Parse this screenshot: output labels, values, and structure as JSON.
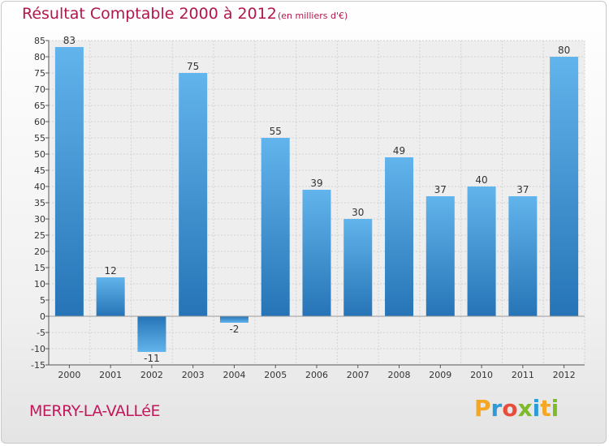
{
  "title": "Résultat Comptable 2000 à 2012",
  "unit": "(en milliers d'€)",
  "commune": "MERRY-LA-VALLéE",
  "brand": {
    "letters": [
      "P",
      "r",
      "o",
      "x",
      "i",
      "t",
      "i"
    ],
    "colors": [
      "#f5a623",
      "#2e9bd6",
      "#e84c3d",
      "#7dbb2a",
      "#2e9bd6",
      "#f5a623",
      "#7dbb2a"
    ]
  },
  "colors": {
    "bar_light": "#62b4ec",
    "bar_dark": "#2674b6",
    "title": "#b0174a"
  },
  "chart_data": {
    "type": "bar",
    "title": "Résultat Comptable 2000 à 2012",
    "ylabel": "en milliers d'€",
    "xlabel": "",
    "categories": [
      "2000",
      "2001",
      "2002",
      "2003",
      "2004",
      "2005",
      "2006",
      "2007",
      "2008",
      "2009",
      "2010",
      "2011",
      "2012"
    ],
    "values": [
      83,
      12,
      -11,
      75,
      -2,
      55,
      39,
      30,
      49,
      37,
      40,
      37,
      80
    ],
    "value_labels": [
      "83",
      "12",
      "-11",
      "75",
      "-2",
      "55",
      "39",
      "30",
      "49",
      "37",
      "40",
      "37",
      "80"
    ],
    "ylim": [
      -15,
      85
    ],
    "yticks": [
      -15,
      -10,
      -5,
      0,
      5,
      10,
      15,
      20,
      25,
      30,
      35,
      40,
      45,
      50,
      55,
      60,
      65,
      70,
      75,
      80,
      85
    ],
    "grid": true
  }
}
